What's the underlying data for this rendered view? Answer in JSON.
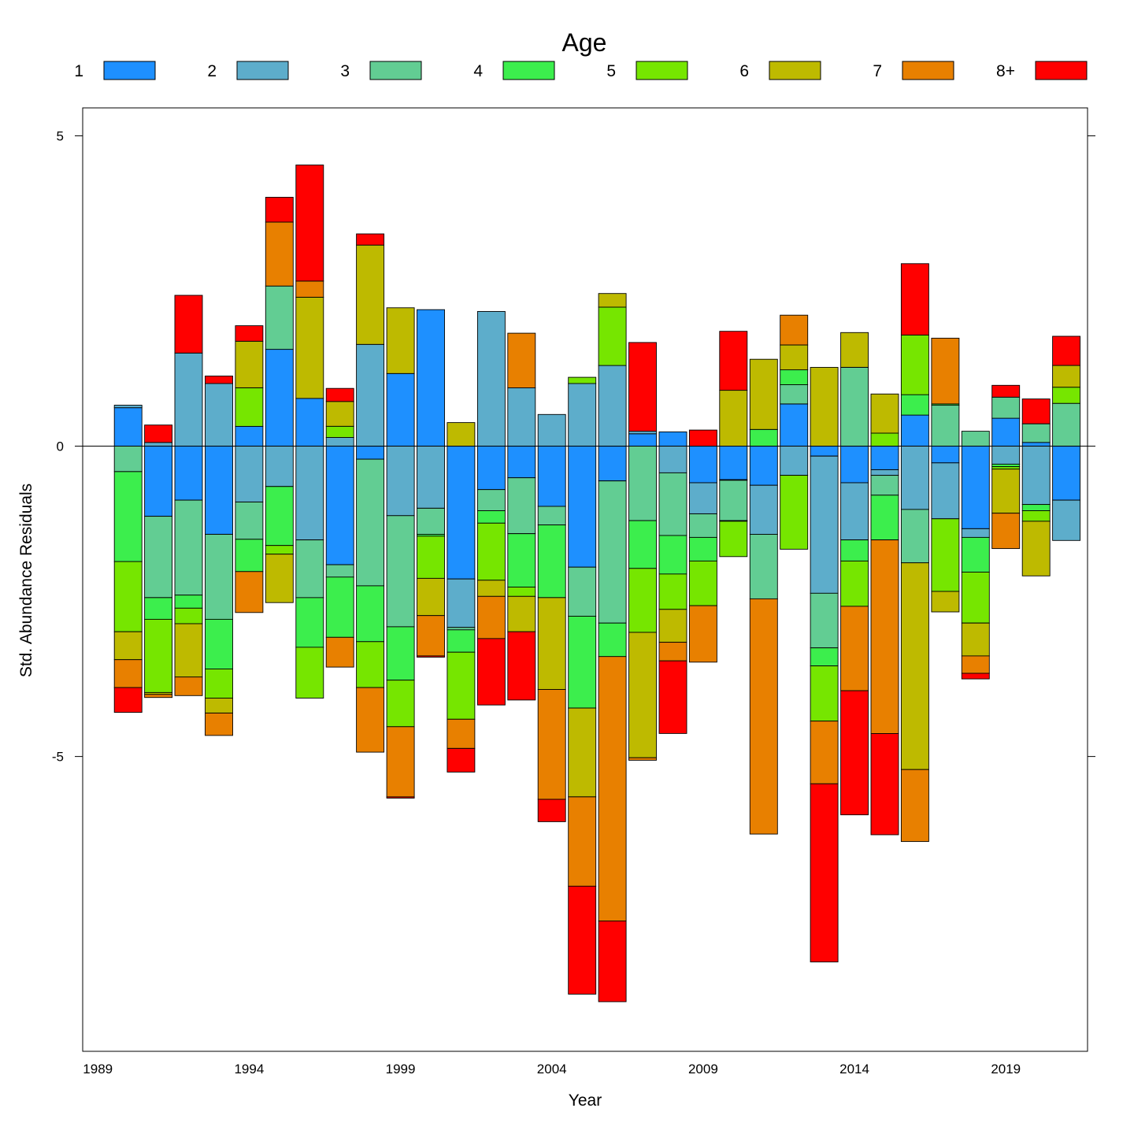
{
  "chart_data": {
    "type": "bar",
    "stacked": "diverging",
    "xlabel": "Year",
    "ylabel": "Std. Abundance Residuals",
    "legend_title": "Age",
    "legend_placement": "top",
    "xlim": [
      1988.5,
      2021.7
    ],
    "ylim": [
      -9.75,
      5.45
    ],
    "y_ticks": [
      {
        "value": 5,
        "label": "5"
      },
      {
        "value": 0,
        "label": "0"
      },
      {
        "value": -5,
        "label": "-5"
      }
    ],
    "x_ticks": [
      1989,
      1994,
      1999,
      2004,
      2009,
      2014,
      2019
    ],
    "grid": false,
    "series_names": [
      "1",
      "2",
      "3",
      "4",
      "5",
      "6",
      "7",
      "8+"
    ],
    "colors": [
      "#1E90FF",
      "#5DADCB",
      "#62CD93",
      "#3CEE4D",
      "#76E600",
      "#BEBA00",
      "#E88000",
      "#FF0000"
    ],
    "x": [
      1990,
      1991,
      1992,
      1993,
      1994,
      1995,
      1996,
      1997,
      1998,
      1999,
      2000,
      2001,
      2002,
      2003,
      2004,
      2005,
      2006,
      2007,
      2008,
      2009,
      2010,
      2011,
      2012,
      2013,
      2014,
      2015,
      2016,
      2017,
      2018,
      2019,
      2020,
      2021
    ],
    "values": [
      [
        0.62,
        -1.13,
        -0.87,
        -1.42,
        0.32,
        1.56,
        0.77,
        -1.91,
        -0.21,
        1.17,
        2.2,
        -2.14,
        -0.7,
        -0.51,
        -0.97,
        -1.95,
        -0.56,
        0.2,
        0.23,
        -0.59,
        -0.54,
        -0.63,
        0.68,
        -0.16,
        -0.59,
        -0.38,
        0.5,
        -0.27,
        -1.33,
        0.45,
        0.06,
        -0.87
      ],
      [
        0.04,
        0.06,
        1.5,
        1.01,
        -0.9,
        -0.65,
        -1.51,
        0.14,
        1.64,
        -1.12,
        -1.0,
        -0.78,
        2.17,
        0.94,
        0.51,
        1.01,
        1.3,
        0.04,
        -0.43,
        -0.5,
        -0.01,
        -0.79,
        -0.47,
        -2.21,
        -0.92,
        -0.09,
        -1.02,
        -0.9,
        -0.14,
        -0.29,
        -0.94,
        -0.65
      ],
      [
        -0.41,
        -1.31,
        -1.53,
        -1.37,
        -0.6,
        1.02,
        -0.93,
        -0.2,
        -2.04,
        -1.79,
        -0.42,
        -0.04,
        -0.34,
        -0.9,
        -0.3,
        -0.79,
        -2.29,
        -1.2,
        -1.01,
        -0.38,
        -0.65,
        -1.04,
        0.31,
        -0.88,
        1.27,
        -0.32,
        -0.86,
        0.66,
        0.24,
        0.34,
        0.3,
        0.69
      ],
      [
        -1.45,
        -0.35,
        -0.21,
        -0.8,
        -0.52,
        -0.95,
        -0.8,
        -0.97,
        -0.9,
        -0.86,
        -0.03,
        -0.36,
        -0.2,
        -0.86,
        -1.17,
        -1.48,
        -0.54,
        -0.77,
        -0.62,
        -0.38,
        -0.01,
        0.27,
        0.24,
        -0.29,
        -0.34,
        -0.72,
        0.33,
        0.02,
        -0.56,
        -0.04,
        -0.1,
        0.0
      ],
      [
        -1.13,
        -1.18,
        -0.25,
        -0.47,
        0.62,
        -0.14,
        -0.82,
        0.18,
        -0.74,
        -0.75,
        -0.68,
        -1.08,
        -0.92,
        -0.15,
        0.0,
        0.1,
        0.94,
        -1.03,
        -0.57,
        -0.72,
        -0.57,
        0.0,
        -1.19,
        -0.89,
        -0.73,
        0.21,
        0.96,
        -1.17,
        -0.82,
        -0.04,
        -0.17,
        0.26
      ],
      [
        -0.45,
        -0.03,
        -0.86,
        -0.24,
        0.75,
        -0.78,
        1.63,
        0.4,
        1.6,
        1.06,
        -0.6,
        0.38,
        -0.26,
        -0.57,
        -1.48,
        -1.43,
        0.22,
        -2.02,
        -0.53,
        0.0,
        0.9,
        1.13,
        0.4,
        1.27,
        0.56,
        0.63,
        -3.33,
        -0.33,
        -0.53,
        -0.71,
        -0.88,
        0.35
      ],
      [
        -0.45,
        -0.05,
        -0.3,
        -0.36,
        -0.66,
        1.03,
        0.26,
        -0.48,
        -1.04,
        -1.13,
        -0.65,
        -0.47,
        -0.68,
        0.88,
        -1.77,
        -1.44,
        -4.26,
        -0.04,
        -0.3,
        -0.91,
        0.0,
        -3.79,
        0.48,
        -1.01,
        -1.36,
        -3.12,
        -1.16,
        1.06,
        -0.28,
        -0.57,
        0.0,
        0.0
      ],
      [
        -0.4,
        0.28,
        0.93,
        0.12,
        0.25,
        0.4,
        1.87,
        0.21,
        0.18,
        -0.02,
        -0.02,
        -0.38,
        -1.07,
        -1.1,
        -0.36,
        -1.74,
        -1.3,
        1.43,
        -1.17,
        0.26,
        0.95,
        0.0,
        0.0,
        -2.87,
        -2.0,
        -1.63,
        1.15,
        0.0,
        -0.09,
        0.19,
        0.4,
        0.47
      ]
    ]
  }
}
